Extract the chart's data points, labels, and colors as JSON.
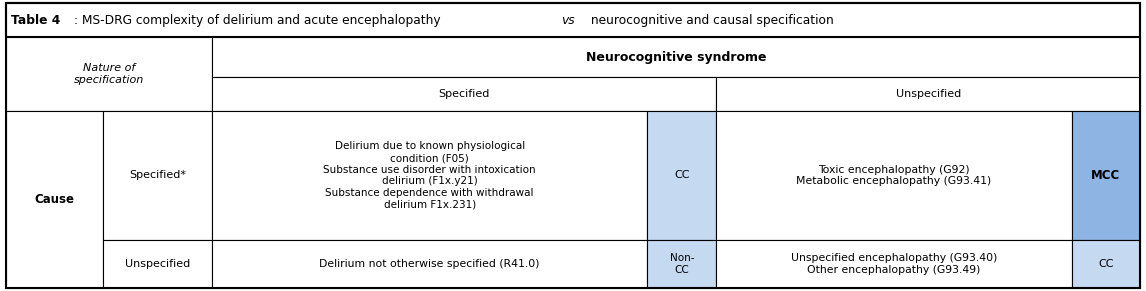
{
  "title": "Table 4: MS-DRG complexity of delirium and acute encephalopathy vs neurocognitive and causal specification",
  "neuro_header": "Neurocognitive syndrome",
  "specified_header": "Specified",
  "unspecified_header": "Unspecified",
  "nature_header": "Nature of\nspecification",
  "cause_label": "Cause",
  "cause_specified_label": "Specified*",
  "cause_unspecified_label": "Unspecified",
  "specified_diagnoses": "Delirium due to known physiological\ncondition (F05)\nSubstance use disorder with intoxication\ndelirium (F1x.y21)\nSubstance dependence with withdrawal\ndelirium F1x.231)",
  "specified_cc": "CC",
  "unspecified_diagnoses_specified": "Toxic encephalopathy (G92)\nMetabolic encephalopathy (G93.41)",
  "specified_mcc": "MCC",
  "unspecified_diagnoses": "Delirium not otherwise specified (R41.0)",
  "unspecified_cc_label": "Non-\nCC",
  "unspecified_diagnoses_unspecified": "Unspecified encephalopathy (G93.40)\nOther encephalopathy (G93.49)",
  "unspecified_cc": "CC",
  "cc_blue_light": "#c5d9f1",
  "cc_blue_dark": "#8db4e2",
  "border_color": "#000000"
}
